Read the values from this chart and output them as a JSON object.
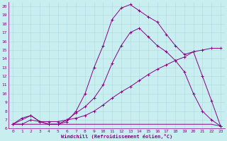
{
  "xlabel": "Windchill (Refroidissement éolien,°C)",
  "bg_color": "#c8eef0",
  "line_color": "#880088",
  "grid_color": "#b0d8da",
  "xlim": [
    -0.5,
    23.5
  ],
  "ylim": [
    6,
    20.5
  ],
  "xticks": [
    0,
    1,
    2,
    3,
    4,
    5,
    6,
    7,
    8,
    9,
    10,
    11,
    12,
    13,
    14,
    15,
    16,
    17,
    18,
    19,
    20,
    21,
    22,
    23
  ],
  "yticks": [
    6,
    7,
    8,
    9,
    10,
    11,
    12,
    13,
    14,
    15,
    16,
    17,
    18,
    19,
    20
  ],
  "line1_x": [
    0,
    1,
    2,
    3,
    4,
    5,
    6,
    7,
    8,
    9,
    10,
    11,
    12,
    13,
    14,
    15,
    16,
    17,
    18,
    19,
    20,
    21,
    22,
    23
  ],
  "line1_y": [
    6.5,
    6.5,
    6.5,
    6.5,
    6.5,
    6.5,
    6.5,
    6.5,
    6.5,
    6.5,
    6.5,
    6.5,
    6.5,
    6.5,
    6.5,
    6.5,
    6.5,
    6.5,
    6.5,
    6.5,
    6.5,
    6.5,
    6.5,
    6.3
  ],
  "line2_x": [
    0,
    1,
    2,
    3,
    4,
    5,
    6,
    7,
    8,
    9,
    10,
    11,
    12,
    13,
    14,
    15,
    16,
    17,
    18,
    19,
    20,
    21,
    22,
    23
  ],
  "line2_y": [
    6.5,
    6.5,
    7.0,
    6.8,
    6.8,
    6.8,
    7.0,
    7.2,
    7.5,
    8.0,
    8.7,
    9.5,
    10.2,
    10.8,
    11.5,
    12.2,
    12.8,
    13.3,
    13.8,
    14.2,
    14.8,
    15.0,
    15.2,
    15.2
  ],
  "line3_x": [
    0,
    1,
    2,
    3,
    4,
    5,
    6,
    7,
    8,
    9,
    10,
    11,
    12,
    13,
    14,
    15,
    16,
    17,
    18,
    19,
    20,
    21,
    22,
    23
  ],
  "line3_y": [
    6.5,
    7.2,
    7.5,
    6.8,
    6.5,
    6.5,
    7.0,
    7.8,
    8.5,
    9.5,
    11.0,
    13.5,
    15.5,
    17.0,
    17.5,
    16.5,
    15.5,
    14.8,
    13.8,
    12.5,
    10.0,
    8.0,
    7.0,
    6.3
  ],
  "line4_x": [
    0,
    2,
    3,
    4,
    5,
    6,
    7,
    8,
    9,
    10,
    11,
    12,
    13,
    14,
    15,
    16,
    17,
    18,
    19,
    20,
    21,
    22,
    23
  ],
  "line4_y": [
    6.5,
    7.5,
    6.8,
    6.5,
    6.5,
    6.8,
    8.0,
    10.0,
    13.0,
    15.5,
    18.5,
    19.8,
    20.2,
    19.5,
    18.8,
    18.2,
    16.8,
    15.5,
    14.5,
    14.8,
    12.0,
    9.2,
    6.3
  ]
}
